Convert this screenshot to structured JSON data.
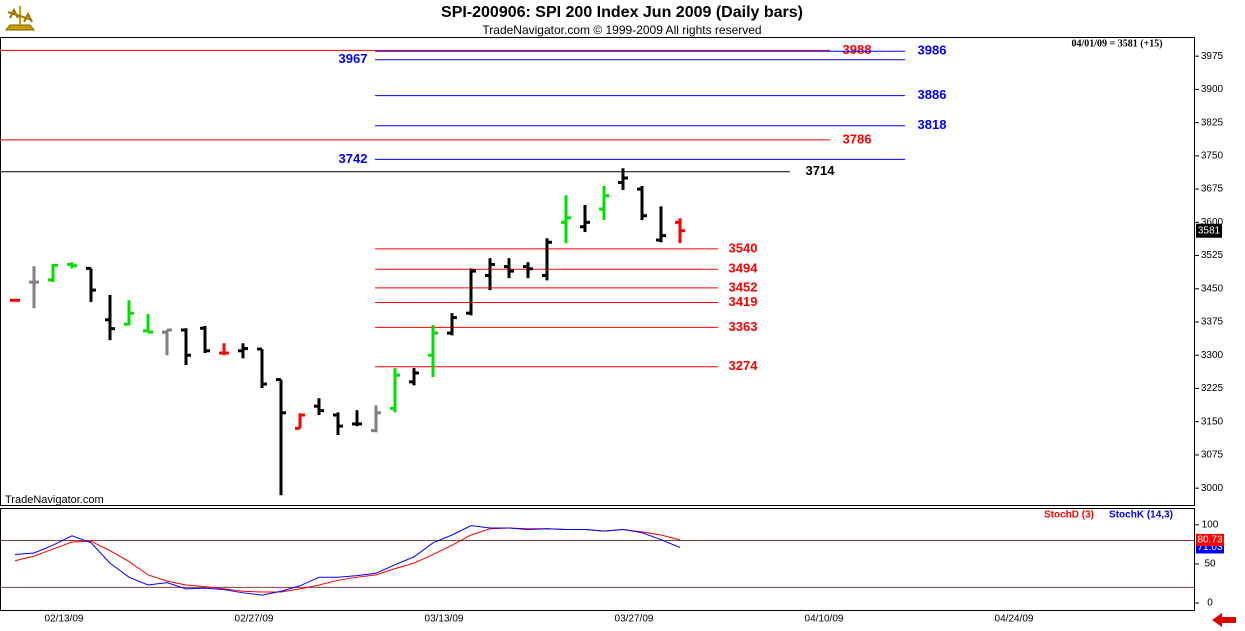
{
  "chart_data": [
    {
      "type": "ohlc",
      "title": "SPI-200906:  SPI 200 Index Jun 2009  (Daily bars)",
      "subtitle": "TradeNavigator.com © 1999-2009 All rights reserved",
      "info": "04/01/09 = 3581 (+15)",
      "watermark": "TradeNavigator.com",
      "open": [
        3424,
        3465,
        3470,
        3505,
        3496,
        3380,
        3370,
        3355,
        3352,
        3357,
        3361,
        3305,
        3310,
        3314,
        3245,
        3135,
        3185,
        3165,
        3145,
        3130,
        3180,
        3240,
        3300,
        3350,
        3395,
        3480,
        3500,
        3500,
        3480,
        3600,
        3590,
        3630,
        3690,
        3675,
        3560,
        3600
      ],
      "high": [
        3426,
        3501,
        3506,
        3510,
        3496,
        3436,
        3424,
        3393,
        3357,
        3361,
        3366,
        3327,
        3327,
        3314,
        3245,
        3169,
        3203,
        3171,
        3176,
        3187,
        3271,
        3271,
        3368,
        3395,
        3496,
        3519,
        3519,
        3510,
        3564,
        3661,
        3639,
        3682,
        3722,
        3682,
        3636,
        3609
      ],
      "low": [
        3422,
        3406,
        3465,
        3496,
        3420,
        3334,
        3368,
        3352,
        3300,
        3278,
        3305,
        3300,
        3293,
        3226,
        2984,
        3135,
        3165,
        3120,
        3140,
        3126,
        3171,
        3232,
        3251,
        3345,
        3390,
        3447,
        3474,
        3474,
        3469,
        3553,
        3578,
        3605,
        3673,
        3605,
        3555,
        3553
      ],
      "close": [
        3424,
        3465,
        3503,
        3502,
        3447,
        3360,
        3395,
        3352,
        3357,
        3300,
        3310,
        3305,
        3315,
        3235,
        3170,
        3165,
        3175,
        3140,
        3145,
        3170,
        3255,
        3260,
        3350,
        3385,
        3490,
        3505,
        3490,
        3495,
        3555,
        3610,
        3600,
        3660,
        3700,
        3615,
        3570,
        3581
      ],
      "colors": [
        "#ff0000",
        "#808080",
        "#00e000",
        "#00e000",
        "#000000",
        "#000000",
        "#00e000",
        "#00e000",
        "#808080",
        "#000000",
        "#000000",
        "#ff0000",
        "#000000",
        "#000000",
        "#000000",
        "#ff0000",
        "#000000",
        "#000000",
        "#000000",
        "#808080",
        "#00e000",
        "#000000",
        "#00e000",
        "#000000",
        "#000000",
        "#000000",
        "#000000",
        "#000000",
        "#000000",
        "#00e000",
        "#000000",
        "#00e000",
        "#000000",
        "#000000",
        "#000000",
        "#ff0000"
      ],
      "levels": [
        {
          "value": 3988,
          "color": "#ff0000"
        },
        {
          "value": 3986,
          "color": "#0000ff"
        },
        {
          "value": 3967,
          "color": "#0000ff"
        },
        {
          "value": 3886,
          "color": "#0000ff"
        },
        {
          "value": 3818,
          "color": "#0000ff"
        },
        {
          "value": 3786,
          "color": "#ff0000"
        },
        {
          "value": 3742,
          "color": "#0000ff"
        },
        {
          "value": 3714,
          "color": "#000000"
        },
        {
          "value": 3540,
          "color": "#ff0000"
        },
        {
          "value": 3494,
          "color": "#ff0000"
        },
        {
          "value": 3452,
          "color": "#ff0000"
        },
        {
          "value": 3419,
          "color": "#ff0000"
        },
        {
          "value": 3363,
          "color": "#ff0000"
        },
        {
          "value": 3274,
          "color": "#ff0000"
        }
      ],
      "ylim": [
        2962,
        4016
      ],
      "yticks": [
        3000,
        3075,
        3150,
        3225,
        3300,
        3375,
        3450,
        3525,
        3600,
        3675,
        3750,
        3825,
        3900,
        3975
      ]
    },
    {
      "type": "line",
      "series": [
        {
          "name": "StochD (3)",
          "color": "#ff0000",
          "values": [
            54,
            60,
            69,
            78,
            79,
            67,
            53,
            36,
            28,
            23,
            21,
            18,
            15,
            14,
            14,
            18,
            23,
            29,
            33,
            36,
            44,
            51,
            62,
            74,
            87,
            95,
            96,
            95,
            95,
            94,
            94,
            92,
            94,
            91,
            87,
            80.73
          ]
        },
        {
          "name": "StochK (14,3)",
          "color": "#0000ff",
          "values": [
            62,
            64,
            74,
            86,
            77,
            51,
            33,
            23,
            26,
            18,
            19,
            17,
            13,
            10,
            15,
            22,
            33,
            33,
            35,
            38,
            49,
            59,
            77,
            87,
            99,
            96,
            96,
            94,
            95,
            94,
            94,
            92,
            94,
            90,
            81,
            71.03
          ]
        }
      ],
      "reference_lines": [
        80,
        20
      ],
      "ylim": [
        -9,
        119
      ],
      "yticks": [
        0,
        50,
        100
      ],
      "date_labels": [
        "02/13/09",
        "02/27/09",
        "03/13/09",
        "03/27/09",
        "04/10/09",
        "04/24/09"
      ]
    }
  ]
}
